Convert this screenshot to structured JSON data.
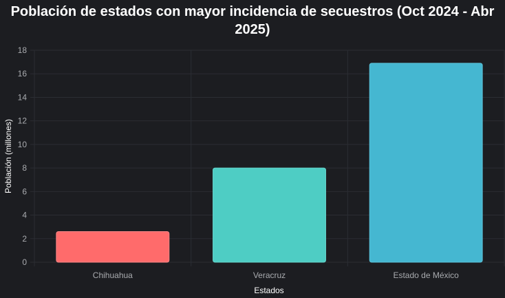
{
  "chart_data": {
    "type": "bar",
    "title_lines": [
      "Población de estados con mayor incidencia de secuestros (Oct 2024 - Abr",
      "2025)"
    ],
    "xlabel": "Estados",
    "ylabel": "Población (millones)",
    "categories": [
      "Chihuahua",
      "Veracruz",
      "Estado de México"
    ],
    "values": [
      2.6,
      8.0,
      16.9
    ],
    "ylim": [
      0,
      18
    ],
    "yticks": [
      "0",
      "2",
      "4",
      "6",
      "8",
      "10",
      "12",
      "14",
      "16",
      "18"
    ],
    "grid": true,
    "legend": "none"
  },
  "colors": {
    "background": "#1c1d21",
    "grid": "#2b2d33",
    "bars": [
      "#ff6b6b",
      "#4ecdc4",
      "#45b7d1"
    ],
    "bar_borders": [
      "#ff8787",
      "#66d6cd",
      "#5cc3da"
    ]
  }
}
